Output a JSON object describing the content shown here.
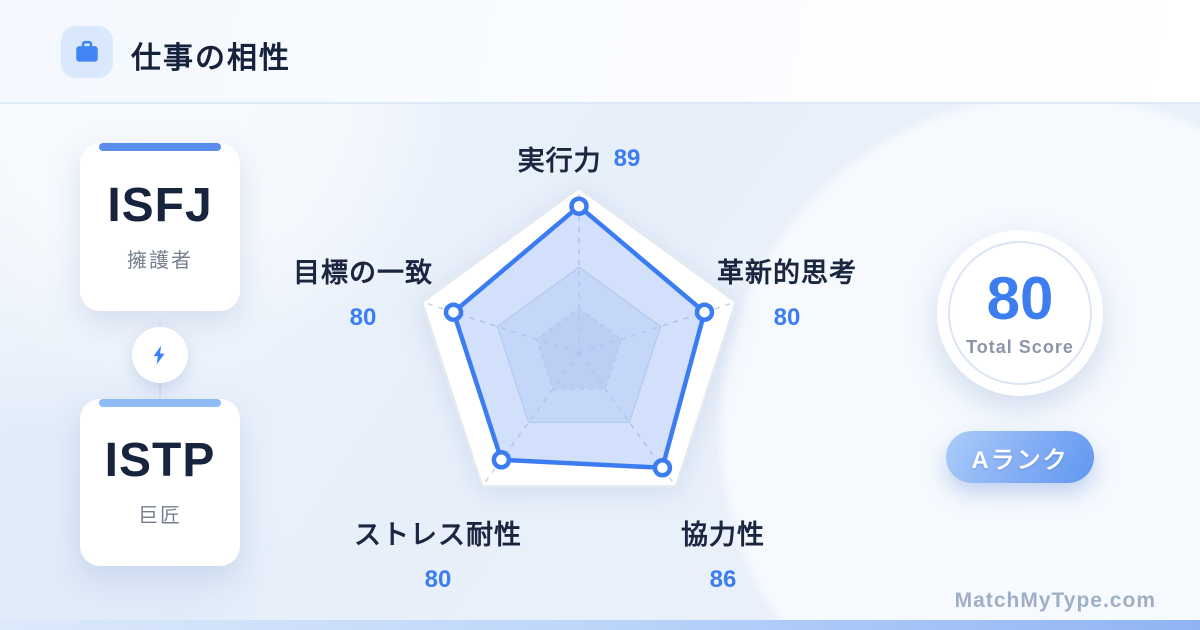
{
  "header": {
    "title": "仕事の相性"
  },
  "types": {
    "first": {
      "code": "ISFJ",
      "alias": "擁護者"
    },
    "second": {
      "code": "ISTP",
      "alias": "巨匠"
    }
  },
  "chart_data": {
    "type": "radar",
    "categories": [
      "実行力",
      "革新的思考",
      "協力性",
      "ストレス耐性",
      "目標の一致"
    ],
    "values": [
      89,
      80,
      86,
      80,
      80
    ],
    "max": 100,
    "grid_ratios": [
      0.27,
      0.52,
      1
    ],
    "grid_style": "dashed pentagon grid with dashed spokes",
    "stroke_color": "#3B7DF0",
    "fill_color": "rgba(125,165,245,0.35)",
    "legend": "none"
  },
  "score": {
    "value": "80",
    "label": "Total Score"
  },
  "rank": {
    "label": "Aランク"
  },
  "footer": {
    "brand": "MatchMyType.com"
  },
  "icons": {
    "header": "briefcase-icon",
    "connector": "lightning-bolt-icon"
  },
  "colors": {
    "accent_blue": "#3C7EF0",
    "dark_text": "#17233C",
    "muted_text": "#76808F",
    "card_first_accent": "#5B8DEE",
    "card_second_accent": "#8FBCF7",
    "badge_gradient_start": "#ABCDF9",
    "badge_gradient_end": "#5F97F0"
  }
}
